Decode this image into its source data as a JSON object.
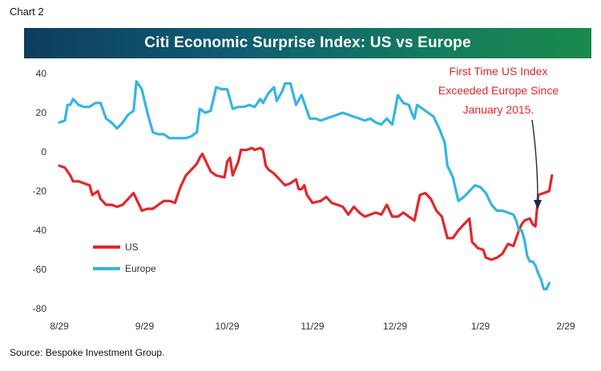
{
  "header": {
    "chart_label": "Chart 2"
  },
  "footer": {
    "source": "Source: Bespoke Investment Group."
  },
  "chart_data": {
    "type": "line",
    "title": "Citi Economic Surprise Index: US vs Europe",
    "xlabel": "",
    "ylabel": "",
    "xlim": [
      0,
      180
    ],
    "ylim": [
      -80,
      40
    ],
    "yticks": [
      40,
      20,
      0,
      -20,
      -40,
      -60,
      -80
    ],
    "xticks": [
      {
        "label": "8/29",
        "pos": 0
      },
      {
        "label": "9/29",
        "pos": 31
      },
      {
        "label": "10/29",
        "pos": 61
      },
      {
        "label": "11/29",
        "pos": 92
      },
      {
        "label": "12/29",
        "pos": 122
      },
      {
        "label": "1/29",
        "pos": 153
      },
      {
        "label": "2/29",
        "pos": 184
      }
    ],
    "grid": false,
    "legend": "bottom-left",
    "series": [
      {
        "name": "US",
        "color": "#e3262b",
        "points": [
          [
            0,
            -7
          ],
          [
            2,
            -8
          ],
          [
            4,
            -12
          ],
          [
            5,
            -15
          ],
          [
            7,
            -15
          ],
          [
            9,
            -16
          ],
          [
            11,
            -17
          ],
          [
            12,
            -22
          ],
          [
            14,
            -20
          ],
          [
            15,
            -24
          ],
          [
            17,
            -27
          ],
          [
            19,
            -27
          ],
          [
            21,
            -28
          ],
          [
            23,
            -27
          ],
          [
            25,
            -24
          ],
          [
            27,
            -21
          ],
          [
            28,
            -24
          ],
          [
            30,
            -30
          ],
          [
            32,
            -29
          ],
          [
            34,
            -29
          ],
          [
            36,
            -27
          ],
          [
            38,
            -25
          ],
          [
            40,
            -25
          ],
          [
            42,
            -26
          ],
          [
            44,
            -18
          ],
          [
            46,
            -12
          ],
          [
            48,
            -9
          ],
          [
            50,
            -6
          ],
          [
            51,
            -3
          ],
          [
            52,
            -1
          ],
          [
            53,
            -4
          ],
          [
            55,
            -10
          ],
          [
            57,
            -12
          ],
          [
            60,
            -13
          ],
          [
            61,
            -5
          ],
          [
            62,
            -3
          ],
          [
            63,
            -12
          ],
          [
            65,
            -5
          ],
          [
            66,
            1
          ],
          [
            68,
            1
          ],
          [
            70,
            2
          ],
          [
            71,
            1
          ],
          [
            73,
            2
          ],
          [
            74,
            1
          ],
          [
            75,
            -7
          ],
          [
            76,
            -9
          ],
          [
            78,
            -11
          ],
          [
            80,
            -14
          ],
          [
            82,
            -17
          ],
          [
            84,
            -16
          ],
          [
            86,
            -14
          ],
          [
            87,
            -19
          ],
          [
            88,
            -19
          ],
          [
            89,
            -17
          ],
          [
            90,
            -22
          ],
          [
            92,
            -26
          ],
          [
            95,
            -25
          ],
          [
            97,
            -23
          ],
          [
            99,
            -26
          ],
          [
            101,
            -27
          ],
          [
            103,
            -28
          ],
          [
            105,
            -32
          ],
          [
            107,
            -28
          ],
          [
            109,
            -31
          ],
          [
            111,
            -33
          ],
          [
            113,
            -32
          ],
          [
            115,
            -31
          ],
          [
            117,
            -32
          ],
          [
            119,
            -27
          ],
          [
            121,
            -33
          ],
          [
            123,
            -33
          ],
          [
            125,
            -31
          ],
          [
            127,
            -33
          ],
          [
            129,
            -35
          ],
          [
            131,
            -22
          ],
          [
            133,
            -21
          ],
          [
            135,
            -24
          ],
          [
            137,
            -30
          ],
          [
            139,
            -33
          ],
          [
            141,
            -44
          ],
          [
            143,
            -44
          ],
          [
            145,
            -40
          ],
          [
            147,
            -37
          ],
          [
            149,
            -34
          ],
          [
            150,
            -46
          ],
          [
            152,
            -49
          ],
          [
            154,
            -50
          ],
          [
            155,
            -54
          ],
          [
            157,
            -55
          ],
          [
            159,
            -54
          ],
          [
            161,
            -52
          ],
          [
            163,
            -47
          ],
          [
            165,
            -48
          ],
          [
            167,
            -40
          ],
          [
            168,
            -37
          ],
          [
            169,
            -35
          ],
          [
            171,
            -34
          ],
          [
            172,
            -37
          ],
          [
            173,
            -38
          ],
          [
            174,
            -22
          ],
          [
            176,
            -21
          ],
          [
            178,
            -20
          ],
          [
            179,
            -12
          ]
        ]
      },
      {
        "name": "Europe",
        "color": "#36b4e3",
        "points": [
          [
            0,
            15
          ],
          [
            2,
            16
          ],
          [
            3,
            24
          ],
          [
            4,
            24
          ],
          [
            5,
            27
          ],
          [
            7,
            24
          ],
          [
            9,
            23
          ],
          [
            11,
            23
          ],
          [
            13,
            25
          ],
          [
            15,
            25
          ],
          [
            17,
            17
          ],
          [
            19,
            15
          ],
          [
            21,
            12
          ],
          [
            23,
            15
          ],
          [
            25,
            19
          ],
          [
            26,
            20
          ],
          [
            27,
            21
          ],
          [
            28,
            36
          ],
          [
            30,
            32
          ],
          [
            32,
            20
          ],
          [
            34,
            10
          ],
          [
            36,
            9
          ],
          [
            38,
            9
          ],
          [
            40,
            7
          ],
          [
            42,
            7
          ],
          [
            44,
            7
          ],
          [
            46,
            7
          ],
          [
            48,
            8
          ],
          [
            50,
            10
          ],
          [
            51,
            22
          ],
          [
            53,
            20
          ],
          [
            55,
            21
          ],
          [
            57,
            33
          ],
          [
            59,
            32
          ],
          [
            61,
            32
          ],
          [
            63,
            22
          ],
          [
            65,
            23
          ],
          [
            67,
            23
          ],
          [
            69,
            24
          ],
          [
            71,
            23
          ],
          [
            73,
            27
          ],
          [
            74,
            25
          ],
          [
            76,
            30
          ],
          [
            78,
            33
          ],
          [
            79,
            26
          ],
          [
            81,
            31
          ],
          [
            82,
            35
          ],
          [
            84,
            35
          ],
          [
            86,
            24
          ],
          [
            88,
            29
          ],
          [
            89,
            25
          ],
          [
            91,
            17
          ],
          [
            93,
            17
          ],
          [
            95,
            16
          ],
          [
            97,
            17
          ],
          [
            99,
            18
          ],
          [
            101,
            19
          ],
          [
            103,
            20
          ],
          [
            105,
            19
          ],
          [
            107,
            18
          ],
          [
            109,
            17
          ],
          [
            111,
            16
          ],
          [
            113,
            17
          ],
          [
            115,
            15
          ],
          [
            117,
            14
          ],
          [
            119,
            17
          ],
          [
            121,
            14
          ],
          [
            123,
            29
          ],
          [
            125,
            25
          ],
          [
            127,
            24
          ],
          [
            128,
            20
          ],
          [
            129,
            17
          ],
          [
            130,
            24
          ],
          [
            132,
            22
          ],
          [
            134,
            20
          ],
          [
            136,
            18
          ],
          [
            138,
            12
          ],
          [
            140,
            5
          ],
          [
            141,
            -7
          ],
          [
            143,
            -13
          ],
          [
            145,
            -25
          ],
          [
            147,
            -23
          ],
          [
            149,
            -20
          ],
          [
            151,
            -17
          ],
          [
            153,
            -18
          ],
          [
            155,
            -21
          ],
          [
            157,
            -27
          ],
          [
            159,
            -30
          ],
          [
            161,
            -30
          ],
          [
            163,
            -31
          ],
          [
            165,
            -32
          ],
          [
            166,
            -35
          ],
          [
            167,
            -40
          ],
          [
            168,
            -40
          ],
          [
            169,
            -45
          ],
          [
            170,
            -53
          ],
          [
            171,
            -56
          ],
          [
            172,
            -56
          ],
          [
            173,
            -58
          ],
          [
            174,
            -62
          ],
          [
            175,
            -65
          ],
          [
            176,
            -70
          ],
          [
            177,
            -70
          ],
          [
            178,
            -67
          ]
        ]
      }
    ],
    "annotations": [
      {
        "lines": [
          "First Time US Index",
          "Exceeded Europe Since",
          "January 2015."
        ]
      }
    ]
  }
}
